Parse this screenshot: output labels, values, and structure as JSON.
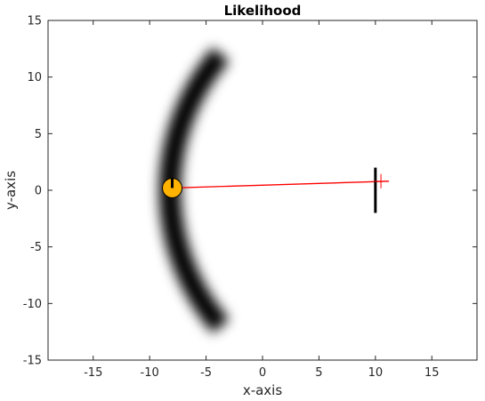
{
  "chart_data": {
    "type": "heatmap",
    "title": "Likelihood",
    "xlabel": "x-axis",
    "ylabel": "y-axis",
    "xlim": [
      -19,
      19
    ],
    "ylim": [
      -15,
      15
    ],
    "xticks": [
      -15,
      -10,
      -5,
      0,
      5,
      10,
      15
    ],
    "yticks": [
      -15,
      -10,
      -5,
      0,
      5,
      10,
      15
    ],
    "grid": false,
    "likelihood_band": {
      "description": "dark arc of high likelihood",
      "center": [
        10,
        0
      ],
      "radius": 18.2,
      "y_range": [
        -12,
        12
      ],
      "width": 1.2,
      "color": "#000000"
    },
    "target": {
      "x": -8,
      "y": 0.2,
      "color": "#ffb300",
      "heading_marker": "vertical-bar"
    },
    "observer": {
      "x": 10,
      "y": 0,
      "bar_y_range": [
        -2,
        2
      ],
      "color": "#000000"
    },
    "bearing_line": {
      "from": [
        -8,
        0.2
      ],
      "to": [
        11.2,
        0.8
      ],
      "color": "#ff0000"
    }
  }
}
